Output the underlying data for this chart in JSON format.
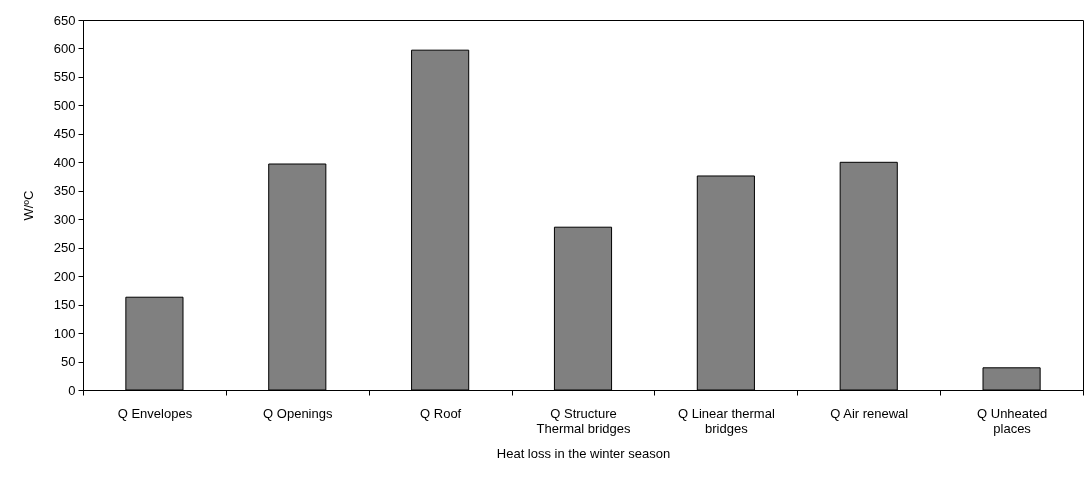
{
  "chart_data": {
    "type": "bar",
    "xlabel": "Heat loss in the winter season",
    "ylabel": "W/ºC",
    "categories": [
      "Q Envelopes",
      "Q Openings",
      "Q Roof",
      "Q Structure Thermal bridges",
      "Q Linear thermal bridges",
      "Q Air renewal",
      "Q Unheated places"
    ],
    "values": [
      163,
      397,
      597,
      286,
      376,
      400,
      39
    ],
    "color": "#808080",
    "ylim": [
      0,
      650
    ],
    "yticks": [
      0,
      50,
      100,
      150,
      200,
      250,
      300,
      350,
      400,
      450,
      500,
      550,
      600,
      650
    ],
    "grid": false
  }
}
